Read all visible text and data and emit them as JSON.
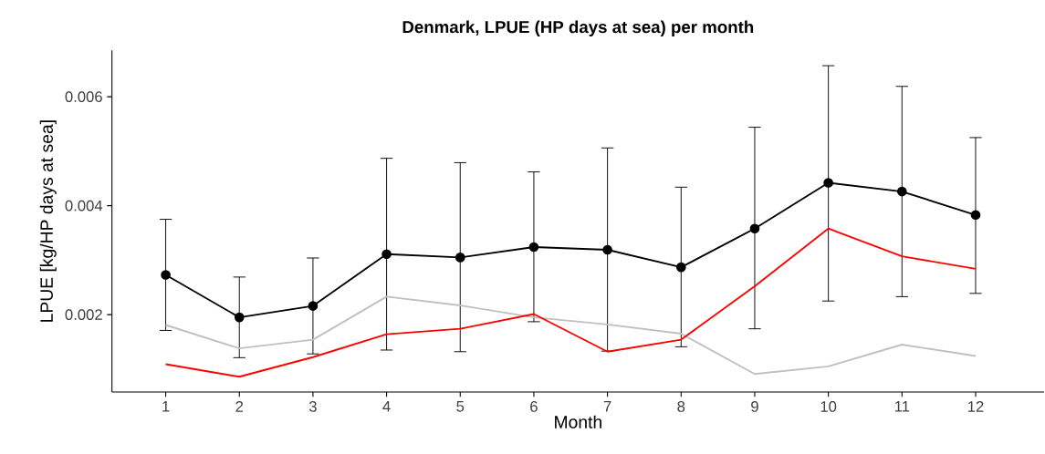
{
  "chart_data": {
    "type": "line",
    "title": "Denmark, LPUE (HP days at sea) per month",
    "xlabel": "Month",
    "ylabel": "LPUE [kg/HP days at sea]",
    "x": [
      1,
      2,
      3,
      4,
      5,
      6,
      7,
      8,
      9,
      10,
      11,
      12
    ],
    "xlim": [
      0.27,
      12.93
    ],
    "xticks": [
      1,
      2,
      3,
      4,
      5,
      6,
      7,
      8,
      9,
      10,
      11,
      12
    ],
    "ylim": [
      0.00058,
      0.00685
    ],
    "yticks": [
      0.002,
      0.004,
      0.006
    ],
    "grid": false,
    "line_style": "solid",
    "series": [
      {
        "color": "#000000",
        "marker": "circle",
        "values": [
          0.00273,
          0.00195,
          0.00216,
          0.00311,
          0.00305,
          0.00324,
          0.00319,
          0.00287,
          0.00358,
          0.00442,
          0.00426,
          0.00383
        ],
        "errors": [
          [
            0.00171,
            0.00375
          ],
          [
            0.00121,
            0.00269
          ],
          [
            0.00128,
            0.00304
          ],
          [
            0.00135,
            0.00487
          ],
          [
            0.00132,
            0.00479
          ],
          [
            0.00187,
            0.00462
          ],
          [
            0.00133,
            0.00506
          ],
          [
            0.00141,
            0.00434
          ],
          [
            0.00174,
            0.00544
          ],
          [
            0.00225,
            0.00657
          ],
          [
            0.00233,
            0.00619
          ],
          [
            0.00239,
            0.00525
          ]
        ]
      },
      {
        "color": "#c0c0c0",
        "marker": "none",
        "values": [
          0.00181,
          0.00138,
          0.00154,
          0.00233,
          0.00217,
          0.00195,
          0.00182,
          0.00165,
          0.00091,
          0.00105,
          0.00145,
          0.00124
        ]
      },
      {
        "color": "#ff0000",
        "marker": "none",
        "values": [
          0.00109,
          0.00086,
          0.00122,
          0.00164,
          0.00174,
          0.00201,
          0.00132,
          0.00154,
          0.00252,
          0.00358,
          0.00307,
          0.00284
        ]
      }
    ]
  }
}
